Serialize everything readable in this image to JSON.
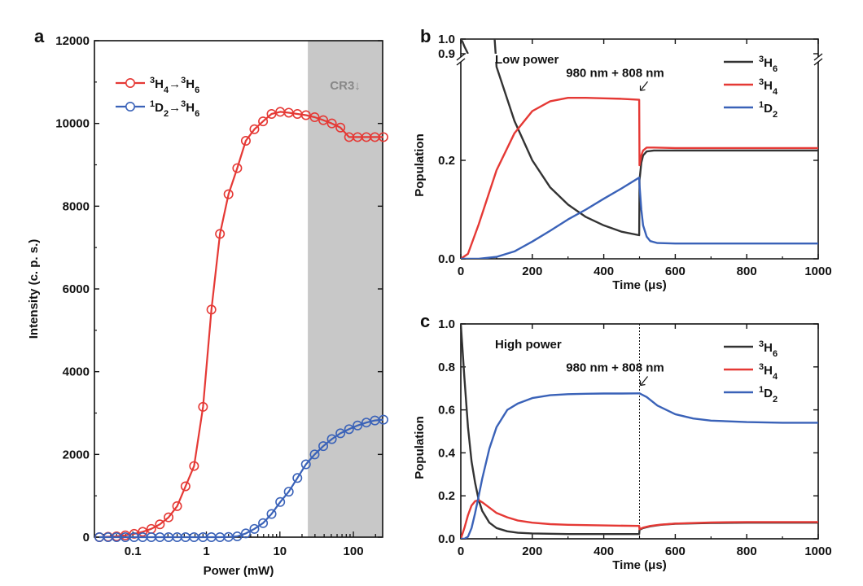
{
  "chart_data": [
    {
      "id": "a",
      "panel_label": "a",
      "type": "line",
      "xlabel": "Power (mW)",
      "ylabel": "Intensity (c. p. s.)",
      "xscale": "log",
      "xlim": [
        0.03,
        250
      ],
      "ylim": [
        0,
        12000
      ],
      "x_ticks": [
        0.1,
        1,
        10,
        100
      ],
      "x_tick_labels": [
        "0.1",
        "1",
        "10",
        "100"
      ],
      "y_ticks": [
        0,
        2000,
        4000,
        6000,
        8000,
        10000,
        12000
      ],
      "y_tick_labels": [
        "0",
        "2000",
        "4000",
        "6000",
        "8000",
        "10000",
        "12000"
      ],
      "shaded_region": {
        "x": [
          24,
          250
        ],
        "label": "CR3↓",
        "color": "#c8c8c8"
      },
      "legend_position": "top-left",
      "series": [
        {
          "legend_parts": [
            [
              "3",
              "sup"
            ],
            [
              "H",
              ""
            ],
            [
              "4",
              "sub"
            ],
            [
              "→",
              ""
            ],
            [
              "3",
              "sup"
            ],
            [
              "H",
              ""
            ],
            [
              "6",
              "sub"
            ]
          ],
          "color": "#e53935",
          "marker": "open-circle",
          "x": [
            0.035,
            0.046,
            0.06,
            0.079,
            0.104,
            0.136,
            0.178,
            0.233,
            0.306,
            0.4,
            0.52,
            0.68,
            0.9,
            1.17,
            1.53,
            2.0,
            2.63,
            3.44,
            4.5,
            5.9,
            7.7,
            10.1,
            13.2,
            17.3,
            22.6,
            29.7,
            38.9,
            50.9,
            66.6,
            87.3,
            114,
            150,
            196,
            256
          ],
          "y": [
            0,
            10,
            20,
            45,
            80,
            130,
            200,
            310,
            480,
            750,
            1230,
            1720,
            3150,
            5500,
            7330,
            8290,
            8920,
            9580,
            9860,
            10050,
            10230,
            10280,
            10260,
            10230,
            10200,
            10150,
            10080,
            10000,
            9900,
            9670,
            9670,
            9670,
            9670,
            9670
          ]
        },
        {
          "legend_parts": [
            [
              "1",
              "sup"
            ],
            [
              "D",
              ""
            ],
            [
              "2",
              "sub"
            ],
            [
              "→",
              ""
            ],
            [
              "3",
              "sup"
            ],
            [
              "H",
              ""
            ],
            [
              "6",
              "sub"
            ]
          ],
          "color": "#3a62b8",
          "marker": "open-circle",
          "x": [
            0.035,
            0.046,
            0.06,
            0.079,
            0.104,
            0.136,
            0.178,
            0.233,
            0.306,
            0.4,
            0.52,
            0.68,
            0.9,
            1.17,
            1.53,
            2.0,
            2.63,
            3.44,
            4.5,
            5.9,
            7.7,
            10.1,
            13.2,
            17.3,
            22.6,
            29.7,
            38.9,
            50.9,
            66.6,
            87.3,
            114,
            150,
            196,
            256
          ],
          "y": [
            0,
            0,
            0,
            0,
            0,
            0,
            0,
            0,
            0,
            0,
            0,
            0,
            0,
            0,
            0,
            5,
            20,
            90,
            200,
            340,
            560,
            850,
            1100,
            1430,
            1760,
            2000,
            2200,
            2370,
            2510,
            2610,
            2700,
            2770,
            2820,
            2840
          ]
        }
      ]
    },
    {
      "id": "b",
      "panel_label": "b",
      "type": "line",
      "xlabel": "Time (μs)",
      "ylabel": "Population",
      "xlim": [
        0,
        1000
      ],
      "ylim_lower": [
        0,
        0.4
      ],
      "ylim_upper": [
        0.9,
        1.0
      ],
      "axis_break": true,
      "x_ticks": [
        0,
        200,
        400,
        600,
        800,
        1000
      ],
      "x_tick_labels": [
        "0",
        "200",
        "400",
        "600",
        "800",
        "1000"
      ],
      "y_ticks": [
        0.0,
        0.2,
        0.9,
        1.0
      ],
      "y_tick_labels": [
        "0.0",
        "0.2",
        "0.9",
        "1.0"
      ],
      "annotation_title": "Low power",
      "annotation_arrow": "980 nm + 808 nm",
      "annotation_x": 500,
      "legend_position": "top-right",
      "series": [
        {
          "legend_parts": [
            [
              "3",
              "sup"
            ],
            [
              "H",
              ""
            ],
            [
              "6",
              "sub"
            ]
          ],
          "color": "#333333",
          "x": [
            0,
            5,
            10,
            20,
            40,
            60,
            80,
            100,
            150,
            200,
            250,
            300,
            350,
            400,
            450,
            499,
            500,
            505,
            510,
            520,
            540,
            560,
            600,
            700,
            800,
            1000
          ],
          "y": [
            1.0,
            0.98,
            0.95,
            0.9,
            0.81,
            0.73,
            0.6,
            0.39,
            0.28,
            0.2,
            0.145,
            0.11,
            0.085,
            0.068,
            0.055,
            0.048,
            0.16,
            0.195,
            0.21,
            0.218,
            0.22,
            0.22,
            0.22,
            0.22,
            0.22,
            0.22
          ]
        },
        {
          "legend_parts": [
            [
              "3",
              "sup"
            ],
            [
              "H",
              ""
            ],
            [
              "4",
              "sub"
            ]
          ],
          "color": "#e53935",
          "x": [
            0,
            20,
            50,
            100,
            150,
            200,
            250,
            300,
            350,
            400,
            450,
            499,
            500,
            505,
            510,
            520,
            540,
            600,
            800,
            1000
          ],
          "y": [
            0,
            0.01,
            0.07,
            0.18,
            0.255,
            0.3,
            0.32,
            0.327,
            0.327,
            0.326,
            0.325,
            0.323,
            0.19,
            0.21,
            0.22,
            0.226,
            0.226,
            0.225,
            0.225,
            0.225
          ]
        },
        {
          "legend_parts": [
            [
              "1",
              "sup"
            ],
            [
              "D",
              ""
            ],
            [
              "2",
              "sub"
            ]
          ],
          "color": "#3a62b8",
          "x": [
            0,
            50,
            100,
            150,
            200,
            250,
            300,
            350,
            400,
            450,
            499,
            500,
            505,
            510,
            520,
            530,
            550,
            600,
            800,
            1000
          ],
          "y": [
            0,
            0.0,
            0.004,
            0.015,
            0.035,
            0.057,
            0.08,
            0.1,
            0.122,
            0.143,
            0.165,
            0.15,
            0.1,
            0.068,
            0.045,
            0.036,
            0.032,
            0.031,
            0.031,
            0.031
          ]
        }
      ]
    },
    {
      "id": "c",
      "panel_label": "c",
      "type": "line",
      "xlabel": "Time (μs)",
      "ylabel": "Population",
      "xlim": [
        0,
        1000
      ],
      "ylim": [
        0,
        1.0
      ],
      "x_ticks": [
        0,
        200,
        400,
        600,
        800,
        1000
      ],
      "x_tick_labels": [
        "0",
        "200",
        "400",
        "600",
        "800",
        "1000"
      ],
      "y_ticks": [
        0.0,
        0.2,
        0.4,
        0.6,
        0.8,
        1.0
      ],
      "y_tick_labels": [
        "0.0",
        "0.2",
        "0.4",
        "0.6",
        "0.8",
        "1.0"
      ],
      "annotation_title": "High power",
      "annotation_arrow": "980 nm + 808 nm",
      "annotation_x": 500,
      "legend_position": "top-right",
      "series": [
        {
          "legend_parts": [
            [
              "3",
              "sup"
            ],
            [
              "H",
              ""
            ],
            [
              "6",
              "sub"
            ]
          ],
          "color": "#333333",
          "x": [
            0,
            10,
            20,
            30,
            40,
            50,
            60,
            80,
            100,
            130,
            160,
            200,
            300,
            400,
            499,
            500,
            510,
            530,
            560,
            600,
            700,
            800,
            1000
          ],
          "y": [
            1.0,
            0.75,
            0.52,
            0.36,
            0.26,
            0.18,
            0.13,
            0.075,
            0.05,
            0.035,
            0.028,
            0.025,
            0.022,
            0.022,
            0.022,
            0.042,
            0.05,
            0.058,
            0.065,
            0.07,
            0.074,
            0.075,
            0.075
          ]
        },
        {
          "legend_parts": [
            [
              "3",
              "sup"
            ],
            [
              "H",
              ""
            ],
            [
              "4",
              "sub"
            ]
          ],
          "color": "#e53935",
          "x": [
            0,
            10,
            20,
            30,
            40,
            50,
            60,
            80,
            100,
            130,
            160,
            200,
            250,
            300,
            400,
            499,
            500,
            510,
            530,
            560,
            600,
            700,
            800,
            1000
          ],
          "y": [
            0,
            0.05,
            0.11,
            0.155,
            0.175,
            0.18,
            0.17,
            0.145,
            0.12,
            0.1,
            0.085,
            0.075,
            0.068,
            0.065,
            0.062,
            0.06,
            0.045,
            0.052,
            0.06,
            0.066,
            0.071,
            0.076,
            0.078,
            0.078
          ]
        },
        {
          "legend_parts": [
            [
              "1",
              "sup"
            ],
            [
              "D",
              ""
            ],
            [
              "2",
              "sub"
            ]
          ],
          "color": "#3a62b8",
          "x": [
            0,
            10,
            20,
            30,
            40,
            50,
            60,
            80,
            100,
            130,
            160,
            200,
            250,
            300,
            350,
            400,
            450,
            499,
            500,
            520,
            550,
            600,
            650,
            700,
            800,
            900,
            1000
          ],
          "y": [
            0,
            0.0,
            0.01,
            0.05,
            0.12,
            0.2,
            0.28,
            0.42,
            0.52,
            0.6,
            0.63,
            0.655,
            0.668,
            0.673,
            0.675,
            0.676,
            0.676,
            0.677,
            0.677,
            0.66,
            0.62,
            0.58,
            0.56,
            0.55,
            0.543,
            0.54,
            0.54
          ]
        }
      ]
    }
  ]
}
